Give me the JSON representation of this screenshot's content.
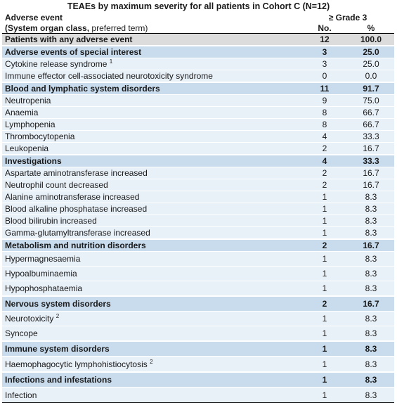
{
  "title": "TEAEs by maximum severity for all patients in Cohort C (N=12)",
  "header": {
    "col1_line1": "Adverse event",
    "col1_line2_bold": "(System organ class,",
    "col1_line2_rest": " preferred term)",
    "group_header": "≥ Grade 3",
    "col_no": "No.",
    "col_pct": "%"
  },
  "total": {
    "label": "Patients with any adverse event",
    "no": "12",
    "pct": "100.0"
  },
  "rows": [
    {
      "type": "group",
      "label": "Adverse events of special interest",
      "no": "3",
      "pct": "25.0",
      "h": 16
    },
    {
      "type": "item",
      "label": "Cytokine release syndrome",
      "sup": "1",
      "no": "3",
      "pct": "25.0",
      "h": 16
    },
    {
      "type": "item",
      "label": "Immune effector cell-associated neurotoxicity syndrome",
      "no": "0",
      "pct": "0.0",
      "h": 16
    },
    {
      "type": "group",
      "label": "Blood and lymphatic system disorders",
      "no": "11",
      "pct": "91.7",
      "h": 16
    },
    {
      "type": "item",
      "label": "Neutropenia",
      "no": "9",
      "pct": "75.0",
      "h": 16
    },
    {
      "type": "item",
      "label": "Anaemia",
      "no": "8",
      "pct": "66.7",
      "h": 16
    },
    {
      "type": "item",
      "label": "Lymphopenia",
      "no": "8",
      "pct": "66.7",
      "h": 16
    },
    {
      "type": "item",
      "label": "Thrombocytopenia",
      "no": "4",
      "pct": "33.3",
      "h": 16
    },
    {
      "type": "item",
      "label": "Leukopenia",
      "no": "2",
      "pct": "16.7",
      "h": 16
    },
    {
      "type": "group",
      "label": "Investigations",
      "no": "4",
      "pct": "33.3",
      "h": 16
    },
    {
      "type": "item",
      "label": "Aspartate aminotransferase increased",
      "no": "2",
      "pct": "16.7",
      "h": 16
    },
    {
      "type": "item",
      "label": "Neutrophil count decreased",
      "no": "2",
      "pct": "16.7",
      "h": 16
    },
    {
      "type": "item",
      "label": "Alanine aminotransferase increased",
      "no": "1",
      "pct": "8.3",
      "h": 16
    },
    {
      "type": "item",
      "label": "Blood alkaline phosphatase increased",
      "no": "1",
      "pct": "8.3",
      "h": 16
    },
    {
      "type": "item",
      "label": "Blood bilirubin increased",
      "no": "1",
      "pct": "8.3",
      "h": 16
    },
    {
      "type": "item",
      "label": "Gamma-glutamyltransferase increased",
      "no": "1",
      "pct": "8.3",
      "h": 16
    },
    {
      "type": "group",
      "label": "Metabolism and nutrition disorders",
      "no": "2",
      "pct": "16.7",
      "h": 16
    },
    {
      "type": "item",
      "label": "Hypermagnesaemia",
      "no": "1",
      "pct": "8.3",
      "h": 20
    },
    {
      "type": "item",
      "label": "Hypoalbuminaemia",
      "no": "1",
      "pct": "8.3",
      "h": 20
    },
    {
      "type": "item",
      "label": "Hypophosphataemia",
      "no": "1",
      "pct": "8.3",
      "h": 20
    },
    {
      "type": "group",
      "label": "Nervous system disorders",
      "no": "2",
      "pct": "16.7",
      "h": 20
    },
    {
      "type": "item",
      "label": "Neurotoxicity",
      "sup": "2",
      "no": "1",
      "pct": "8.3",
      "h": 20
    },
    {
      "type": "item",
      "label": "Syncope",
      "no": "1",
      "pct": "8.3",
      "h": 20
    },
    {
      "type": "group",
      "label": "Immune system disorders",
      "no": "1",
      "pct": "8.3",
      "h": 20
    },
    {
      "type": "item",
      "label": "Haemophagocytic lymphohistiocytosis",
      "sup": "2",
      "no": "1",
      "pct": "8.3",
      "h": 21
    },
    {
      "type": "group",
      "label": "Infections and infestations",
      "no": "1",
      "pct": "8.3",
      "h": 20
    },
    {
      "type": "item",
      "label": "Infection",
      "no": "1",
      "pct": "8.3",
      "h": 21
    }
  ]
}
